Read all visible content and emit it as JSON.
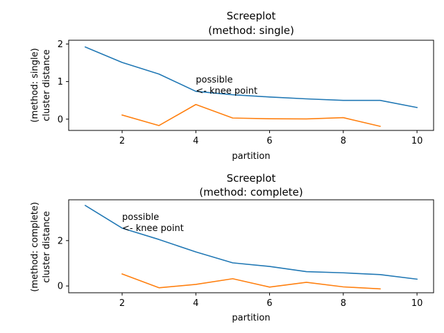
{
  "chart_data": [
    {
      "type": "line",
      "title": "Screeplot",
      "subtitle": "(method: single)",
      "xlabel": "partition",
      "ylabel_line1": "(method: single)",
      "ylabel_line2": "cluster distance",
      "xlim": [
        0.55,
        10.45
      ],
      "ylim": [
        -0.3,
        2.1
      ],
      "xticks": [
        2,
        4,
        6,
        8,
        10
      ],
      "yticks": [
        0,
        1,
        2
      ],
      "grid": false,
      "annotation": {
        "line1": "possible",
        "line2": "<- knee point",
        "x": 4,
        "y": 0.75
      },
      "series": [
        {
          "color": "#1f77b4",
          "x": [
            1,
            2,
            3,
            4,
            5,
            6,
            7,
            8,
            9,
            10
          ],
          "y": [
            1.92,
            1.51,
            1.2,
            0.74,
            0.65,
            0.59,
            0.54,
            0.5,
            0.5,
            0.31
          ]
        },
        {
          "color": "#ff7f0e",
          "x": [
            2,
            3,
            4,
            5,
            6,
            7,
            8,
            9
          ],
          "y": [
            0.11,
            -0.17,
            0.39,
            0.03,
            0.01,
            0.005,
            0.04,
            -0.19
          ]
        }
      ]
    },
    {
      "type": "line",
      "title": "Screeplot",
      "subtitle": "(method: complete)",
      "xlabel": "partition",
      "ylabel_line1": "(method: complete)",
      "ylabel_line2": "cluster distance",
      "xlim": [
        0.55,
        10.45
      ],
      "ylim": [
        -0.3,
        3.8
      ],
      "xticks": [
        2,
        4,
        6,
        8,
        10
      ],
      "yticks": [
        0,
        2
      ],
      "grid": false,
      "annotation": {
        "line1": "possible",
        "line2": "<- knee point",
        "x": 2,
        "y": 2.55
      },
      "series": [
        {
          "color": "#1f77b4",
          "x": [
            1,
            2,
            3,
            4,
            5,
            6,
            7,
            8,
            9,
            10
          ],
          "y": [
            3.55,
            2.55,
            2.05,
            1.5,
            1.02,
            0.86,
            0.63,
            0.58,
            0.5,
            0.3
          ]
        },
        {
          "color": "#ff7f0e",
          "x": [
            2,
            3,
            4,
            5,
            6,
            7,
            8,
            9
          ],
          "y": [
            0.53,
            -0.08,
            0.07,
            0.32,
            -0.05,
            0.16,
            -0.04,
            -0.13
          ]
        }
      ]
    }
  ]
}
